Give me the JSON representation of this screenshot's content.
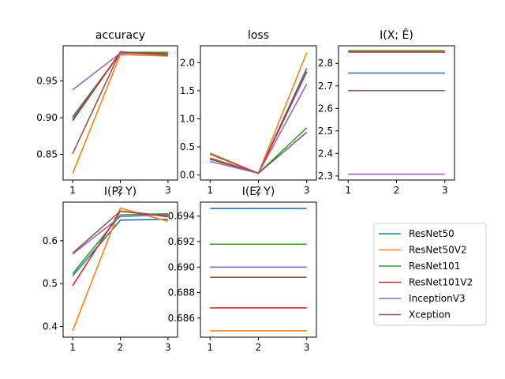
{
  "colors": {
    "ResNet50": "#1f77b4",
    "ResNet50V2": "#ff7f0e",
    "ResNet101": "#2ca02c",
    "ResNet101V2": "#d62728",
    "InceptionV3": "#9467bd",
    "Xception": "#8c564b"
  },
  "legend": [
    "ResNet50",
    "ResNet50V2",
    "ResNet101",
    "ResNet101V2",
    "InceptionV3",
    "Xception"
  ],
  "chart_data": [
    {
      "type": "line",
      "title": "accuracy",
      "x": [
        1,
        2,
        3
      ],
      "xticks": [
        "1",
        "2",
        "3"
      ],
      "ylim": [
        0.815,
        0.998
      ],
      "yticks": [
        0.85,
        0.9,
        0.95
      ],
      "ytick_labels": [
        "0.85",
        "0.90",
        "0.95"
      ],
      "series": [
        {
          "name": "ResNet50",
          "values": [
            0.901,
            0.988,
            0.987
          ]
        },
        {
          "name": "ResNet50V2",
          "values": [
            0.824,
            0.986,
            0.984
          ]
        },
        {
          "name": "ResNet101",
          "values": [
            0.898,
            0.989,
            0.989
          ]
        },
        {
          "name": "ResNet101V2",
          "values": [
            0.896,
            0.989,
            0.987
          ]
        },
        {
          "name": "InceptionV3",
          "values": [
            0.938,
            0.988,
            0.986
          ]
        },
        {
          "name": "Xception",
          "values": [
            0.851,
            0.99,
            0.985
          ]
        }
      ]
    },
    {
      "type": "line",
      "title": "loss",
      "x": [
        1,
        2,
        3
      ],
      "xticks": [
        "1",
        "2",
        "3"
      ],
      "ylim": [
        -0.09,
        2.3
      ],
      "yticks": [
        0.0,
        0.5,
        1.0,
        1.5,
        2.0
      ],
      "ytick_labels": [
        "0.0",
        "0.5",
        "1.0",
        "1.5",
        "2.0"
      ],
      "series": [
        {
          "name": "ResNet50",
          "values": [
            0.29,
            0.03,
            1.9
          ]
        },
        {
          "name": "ResNet50V2",
          "values": [
            0.39,
            0.03,
            2.18
          ]
        },
        {
          "name": "ResNet101",
          "values": [
            0.28,
            0.03,
            0.84
          ]
        },
        {
          "name": "ResNet101V2",
          "values": [
            0.3,
            0.03,
            1.84
          ]
        },
        {
          "name": "InceptionV3",
          "values": [
            0.24,
            0.03,
            1.62
          ]
        },
        {
          "name": "Xception",
          "values": [
            0.37,
            0.03,
            0.76
          ]
        }
      ]
    },
    {
      "type": "line",
      "title": "I(X; Ê)",
      "x": [
        1,
        2,
        3
      ],
      "xticks": [
        "1",
        "2",
        "3"
      ],
      "ylim": [
        2.282,
        2.878
      ],
      "yticks": [
        2.3,
        2.4,
        2.5,
        2.6,
        2.7,
        2.8
      ],
      "ytick_labels": [
        "2.3",
        "2.4",
        "2.5",
        "2.6",
        "2.7",
        "2.8"
      ],
      "series": [
        {
          "name": "ResNet50",
          "values": [
            2.757,
            2.757,
            2.757
          ]
        },
        {
          "name": "ResNet50V2",
          "values": [
            2.852,
            2.852,
            2.852
          ]
        },
        {
          "name": "ResNet101",
          "values": [
            2.856,
            2.856,
            2.856
          ]
        },
        {
          "name": "ResNet101V2",
          "values": [
            2.85,
            2.85,
            2.85
          ]
        },
        {
          "name": "InceptionV3",
          "values": [
            2.308,
            2.308,
            2.308
          ]
        },
        {
          "name": "Xception",
          "values": [
            2.679,
            2.679,
            2.679
          ]
        }
      ]
    },
    {
      "type": "line",
      "title": "I(P; Y)",
      "x": [
        1,
        2,
        3
      ],
      "xticks": [
        "1",
        "2",
        "3"
      ],
      "ylim": [
        0.375,
        0.69
      ],
      "yticks": [
        0.4,
        0.5,
        0.6
      ],
      "ytick_labels": [
        "0.4",
        "0.5",
        "0.6"
      ],
      "series": [
        {
          "name": "ResNet50",
          "values": [
            0.518,
            0.648,
            0.65
          ]
        },
        {
          "name": "ResNet50V2",
          "values": [
            0.39,
            0.676,
            0.645
          ]
        },
        {
          "name": "ResNet101",
          "values": [
            0.523,
            0.66,
            0.663
          ]
        },
        {
          "name": "ResNet101V2",
          "values": [
            0.495,
            0.669,
            0.656
          ]
        },
        {
          "name": "InceptionV3",
          "values": [
            0.569,
            0.656,
            0.661
          ]
        },
        {
          "name": "Xception",
          "values": [
            0.571,
            0.669,
            0.658
          ]
        }
      ]
    },
    {
      "type": "line",
      "title": "I(E; Y)",
      "x": [
        1,
        2,
        3
      ],
      "xticks": [
        "1",
        "2",
        "3"
      ],
      "ylim": [
        0.6845,
        0.6951
      ],
      "yticks": [
        0.686,
        0.688,
        0.69,
        0.692,
        0.694
      ],
      "ytick_labels": [
        "0.686",
        "0.688",
        "0.690",
        "0.692",
        "0.694"
      ],
      "series": [
        {
          "name": "ResNet50",
          "values": [
            0.6946,
            0.6946,
            0.6946
          ]
        },
        {
          "name": "ResNet50V2",
          "values": [
            0.685,
            0.685,
            0.685
          ]
        },
        {
          "name": "ResNet101",
          "values": [
            0.6918,
            0.6918,
            0.6918
          ]
        },
        {
          "name": "ResNet101V2",
          "values": [
            0.6868,
            0.6868,
            0.6868
          ]
        },
        {
          "name": "InceptionV3",
          "values": [
            0.69,
            0.69,
            0.69
          ]
        },
        {
          "name": "Xception",
          "values": [
            0.6892,
            0.6892,
            0.6892
          ]
        }
      ]
    }
  ]
}
